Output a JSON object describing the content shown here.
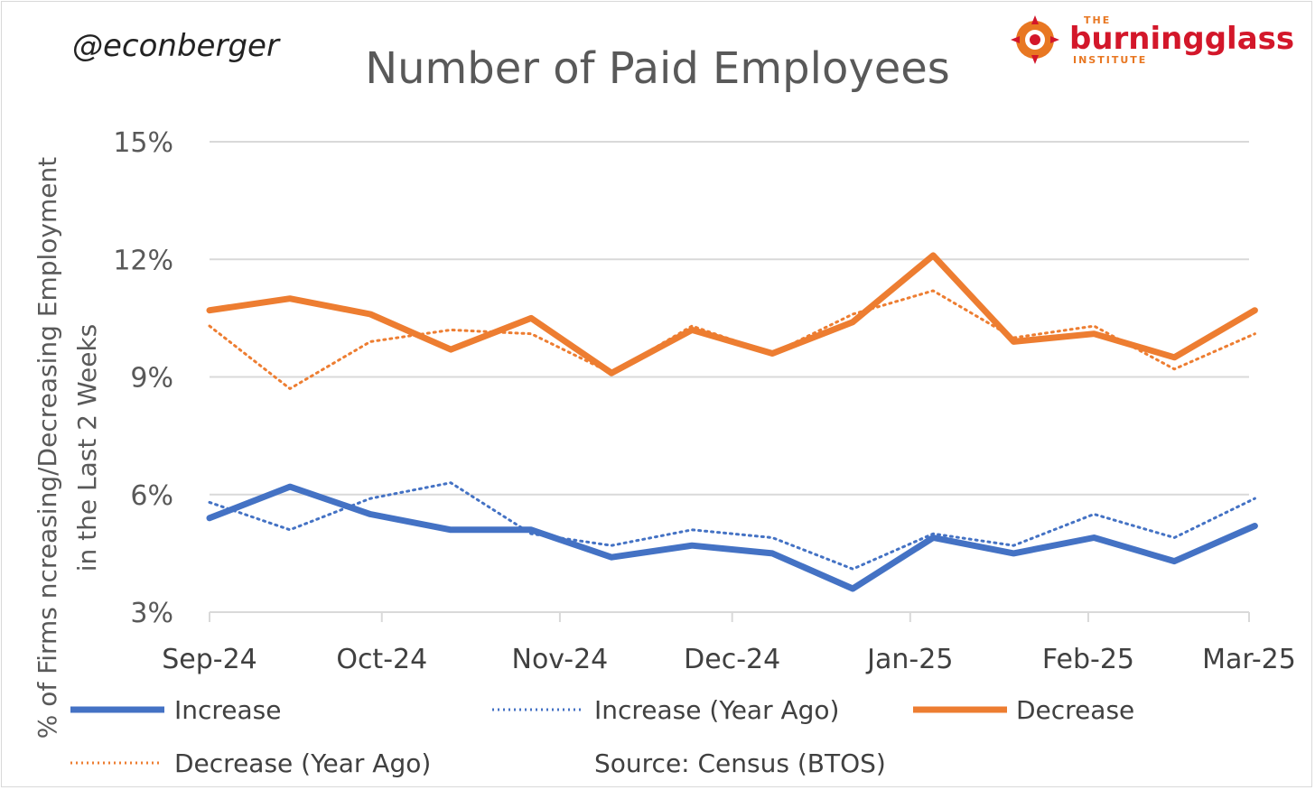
{
  "header": {
    "author": "@econberger",
    "logo": {
      "the": "THE",
      "name": "burningglass",
      "sub": "INSTITUTE"
    }
  },
  "source_note": "Source: Census (BTOS)",
  "colors": {
    "increase": "#4472c4",
    "decrease": "#ed7d31",
    "grid": "#d9d9d9",
    "axis": "#d9d9d9"
  },
  "chart_data": {
    "type": "line",
    "title": "Number of Paid Employees",
    "ylabel": "% of Firms ncreasing/Decreasing Employment in the Last 2 Weeks",
    "ylabel_lines": [
      "% of Firms ncreasing/Decreasing Employment",
      "in the Last 2 Weeks"
    ],
    "xlabel": "",
    "ylim": [
      3,
      15
    ],
    "yticks": [
      "3%",
      "6%",
      "9%",
      "12%",
      "15%"
    ],
    "ytick_values": [
      3,
      6,
      9,
      12,
      15
    ],
    "xlim": [
      "2024-09-01",
      "2025-03-01"
    ],
    "xticks": [
      "Sep-24",
      "Oct-24",
      "Nov-24",
      "Dec-24",
      "Jan-25",
      "Feb-25",
      "Mar-25"
    ],
    "xtick_dates": [
      "2024-09-01",
      "2024-10-01",
      "2024-11-01",
      "2024-12-01",
      "2025-01-01",
      "2025-02-01",
      "2025-03-01"
    ],
    "x": [
      "2024-09-01",
      "2024-09-15",
      "2024-09-29",
      "2024-10-13",
      "2024-10-27",
      "2024-11-10",
      "2024-11-24",
      "2024-12-08",
      "2024-12-22",
      "2025-01-05",
      "2025-01-19",
      "2025-02-02",
      "2025-02-16",
      "2025-03-02"
    ],
    "legend_placement": "bottom",
    "grid": true,
    "series": [
      {
        "name": "Increase",
        "color": "#4472c4",
        "style": "solid",
        "values": [
          5.4,
          6.2,
          5.5,
          5.1,
          5.1,
          4.4,
          4.7,
          4.5,
          3.6,
          4.9,
          4.5,
          4.9,
          4.3,
          5.2
        ]
      },
      {
        "name": "Increase (Year Ago)",
        "color": "#4472c4",
        "style": "dotted",
        "values": [
          5.8,
          5.1,
          5.9,
          6.3,
          5.0,
          4.7,
          5.1,
          4.9,
          4.1,
          5.0,
          4.7,
          5.5,
          4.9,
          5.9
        ]
      },
      {
        "name": "Decrease",
        "color": "#ed7d31",
        "style": "solid",
        "values": [
          10.7,
          11.0,
          10.6,
          9.7,
          10.5,
          9.1,
          10.2,
          9.6,
          10.4,
          12.1,
          9.9,
          10.1,
          9.5,
          10.7
        ]
      },
      {
        "name": "Decrease (Year Ago)",
        "color": "#ed7d31",
        "style": "dotted",
        "values": [
          10.3,
          8.7,
          9.9,
          10.2,
          10.1,
          9.1,
          10.3,
          9.6,
          10.6,
          11.2,
          10.0,
          10.3,
          9.2,
          10.1
        ]
      }
    ]
  }
}
